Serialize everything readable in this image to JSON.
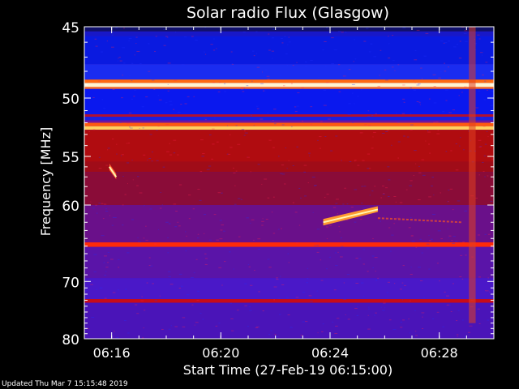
{
  "chart_data": {
    "type": "heatmap",
    "title": "Solar radio Flux (Glasgow)",
    "xlabel": "Start Time (27-Feb-19 06:15:00)",
    "ylabel": "Frequency [MHz]",
    "x_range": [
      "06:15:00",
      "06:30:00"
    ],
    "ylim": [
      45,
      80
    ],
    "y_scale": "reciprocal",
    "y_ticks": [
      45,
      50,
      55,
      60,
      70,
      80
    ],
    "x_ticks": [
      "06:16",
      "06:20",
      "06:24",
      "06:28"
    ],
    "colormap": [
      "#1010ff",
      "#5a1ad0",
      "#7a1890",
      "#b01010",
      "#ff3000",
      "#ffb040",
      "#ffffe0"
    ],
    "band_rows": [
      {
        "f_start": 45.0,
        "f_end": 45.3,
        "color": "#10106a"
      },
      {
        "f_start": 45.3,
        "f_end": 45.6,
        "color": "#1818c8"
      },
      {
        "f_start": 45.6,
        "f_end": 47.5,
        "color": "#0a1ae0"
      },
      {
        "f_start": 47.5,
        "f_end": 48.6,
        "color": "#1a2cf0"
      },
      {
        "f_start": 48.6,
        "f_end": 48.85,
        "color": "#ff6a10"
      },
      {
        "f_start": 48.85,
        "f_end": 49.15,
        "color": "#fff4d0"
      },
      {
        "f_start": 49.15,
        "f_end": 49.3,
        "color": "#ff7020"
      },
      {
        "f_start": 49.3,
        "f_end": 51.3,
        "color": "#0a18ee"
      },
      {
        "f_start": 51.3,
        "f_end": 51.5,
        "color": "#b01030"
      },
      {
        "f_start": 51.5,
        "f_end": 51.8,
        "color": "#1a20e0"
      },
      {
        "f_start": 51.8,
        "f_end": 52.0,
        "color": "#7014a0"
      },
      {
        "f_start": 52.0,
        "f_end": 52.3,
        "color": "#ff5a10"
      },
      {
        "f_start": 52.3,
        "f_end": 52.6,
        "color": "#ffd060"
      },
      {
        "f_start": 52.6,
        "f_end": 55.5,
        "color": "#b00c10"
      },
      {
        "f_start": 55.5,
        "f_end": 56.5,
        "color": "#a00c18"
      },
      {
        "f_start": 56.5,
        "f_end": 60.0,
        "color": "#8a0c38"
      },
      {
        "f_start": 60.0,
        "f_end": 64.5,
        "color": "#6a108a"
      },
      {
        "f_start": 64.5,
        "f_end": 65.1,
        "color": "#ff2a08"
      },
      {
        "f_start": 65.1,
        "f_end": 69.5,
        "color": "#5a14a8"
      },
      {
        "f_start": 69.5,
        "f_end": 72.8,
        "color": "#4a18c8"
      },
      {
        "f_start": 72.8,
        "f_end": 73.4,
        "color": "#c80c18"
      },
      {
        "f_start": 73.4,
        "f_end": 80.0,
        "color": "#4a14b8"
      }
    ],
    "events": [
      {
        "type": "burst",
        "x_start": "06:23:45",
        "x_end": "06:25:45",
        "f_start": 62.0,
        "f_end": 60.5,
        "color": "#ff9a30"
      },
      {
        "type": "drift",
        "x_start": "06:25:45",
        "x_end": "06:28:50",
        "f_start": 61.5,
        "f_end": 62.0,
        "color": "#d04040"
      },
      {
        "type": "burst",
        "x_start": "06:15:55",
        "x_end": "06:16:10",
        "f_start": 56.0,
        "f_end": 57.0,
        "color": "#ff6030"
      },
      {
        "type": "vertical",
        "x_start": "06:29:05",
        "x_end": "06:29:20",
        "f_start": 45.0,
        "f_end": 77.0,
        "color": "#e04020"
      }
    ]
  },
  "footer": {
    "updated_text": "Updated Thu Mar  7 15:15:48 2019"
  }
}
